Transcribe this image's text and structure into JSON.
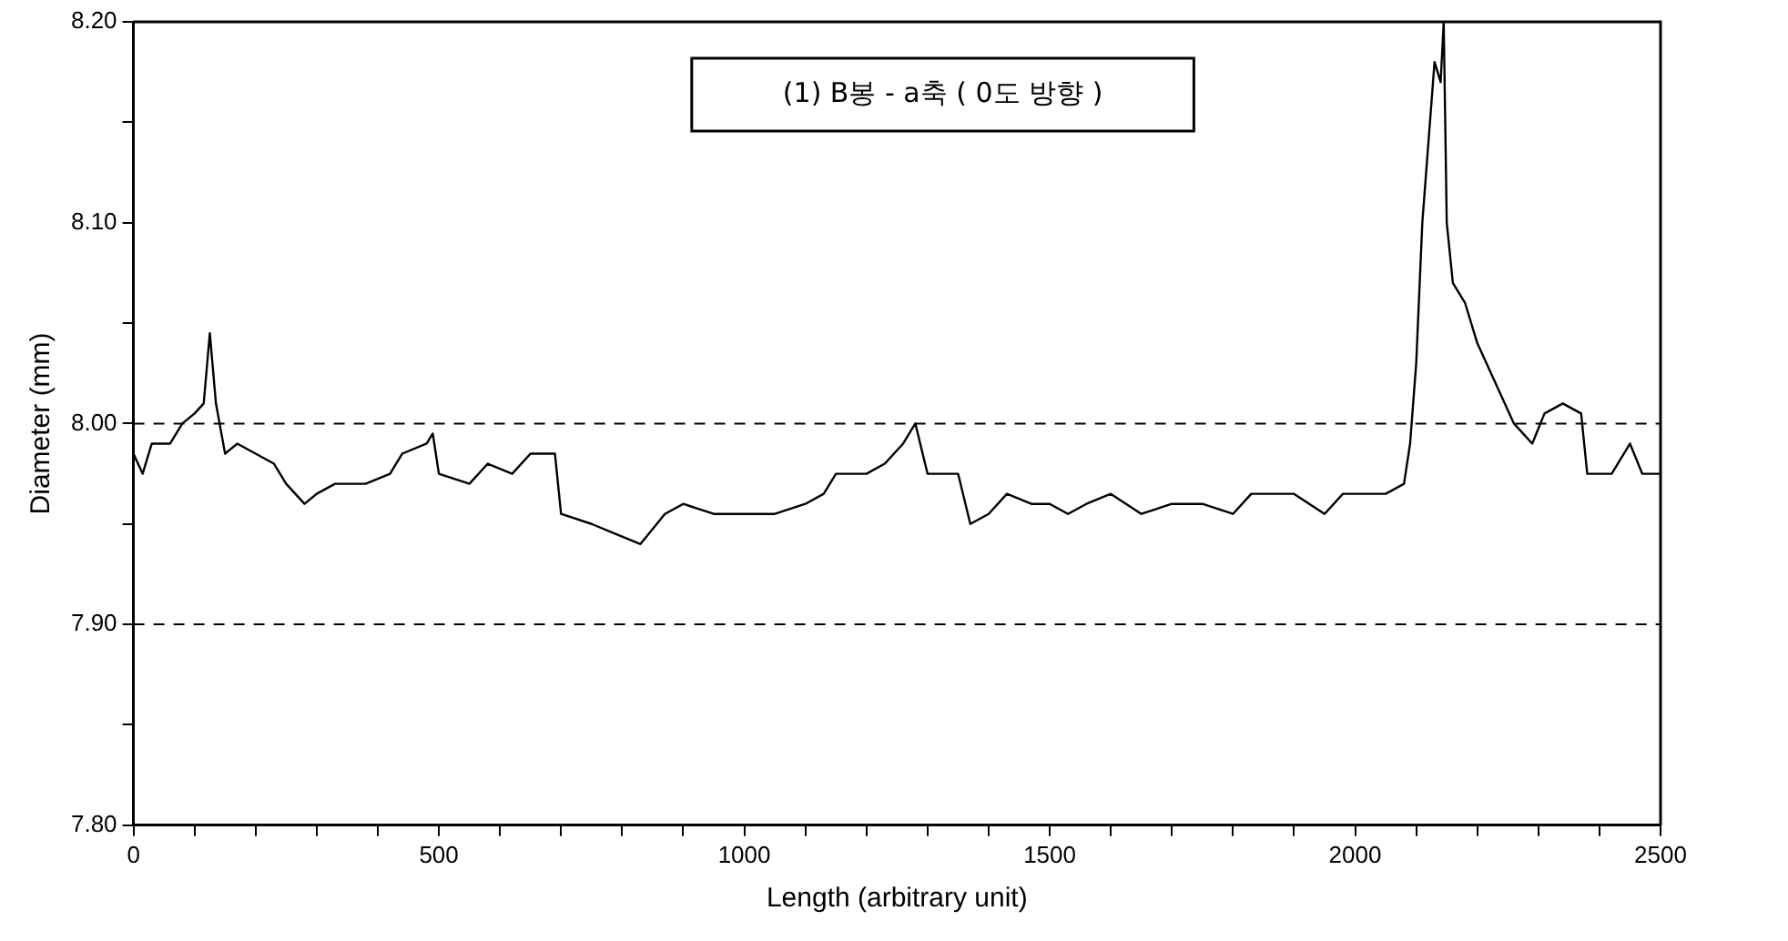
{
  "chart_data": {
    "type": "line",
    "xlabel": "Length (arbitrary unit)",
    "ylabel": "Diameter (mm)",
    "annotations": [
      "(1) B봉 - a축 ( 0도 방향 )"
    ],
    "xlim": [
      0,
      2500
    ],
    "ylim": [
      7.8,
      8.2
    ],
    "xticks": [
      0,
      {
        "value": 100,
        "label": null
      },
      {
        "value": 200,
        "label": null
      },
      {
        "value": 300,
        "label": null
      },
      {
        "value": 400,
        "label": null
      },
      500,
      {
        "value": 600,
        "label": null
      },
      {
        "value": 700,
        "label": null
      },
      {
        "value": 800,
        "label": null
      },
      {
        "value": 900,
        "label": null
      },
      1000,
      {
        "value": 1100,
        "label": null
      },
      {
        "value": 1200,
        "label": null
      },
      {
        "value": 1300,
        "label": null
      },
      {
        "value": 1400,
        "label": null
      },
      1500,
      {
        "value": 1600,
        "label": null
      },
      {
        "value": 1700,
        "label": null
      },
      {
        "value": 1800,
        "label": null
      },
      {
        "value": 1900,
        "label": null
      },
      2000,
      {
        "value": 2100,
        "label": null
      },
      {
        "value": 2200,
        "label": null
      },
      {
        "value": 2300,
        "label": null
      },
      {
        "value": 2400,
        "label": null
      },
      2500
    ],
    "yticks": [
      {
        "value": 7.8,
        "label": "7.80"
      },
      {
        "value": 7.85,
        "label": null
      },
      {
        "value": 7.9,
        "label": "7.90"
      },
      {
        "value": 7.95,
        "label": null
      },
      {
        "value": 8.0,
        "label": "8.00"
      },
      {
        "value": 8.05,
        "label": null
      },
      {
        "value": 8.1,
        "label": "8.10"
      },
      {
        "value": 8.15,
        "label": null
      },
      {
        "value": 8.2,
        "label": "8.20"
      }
    ],
    "grid": false,
    "legend": false,
    "marker": "none",
    "line_style": "solid",
    "ref_lines": [
      {
        "axis": "y",
        "value": 8.0,
        "line_style": "dashed",
        "color": "#000000"
      },
      {
        "axis": "y",
        "value": 7.9,
        "line_style": "dashed",
        "color": "#000000"
      }
    ],
    "x": [
      0,
      15,
      30,
      60,
      80,
      100,
      115,
      125,
      135,
      150,
      170,
      200,
      230,
      250,
      280,
      300,
      330,
      380,
      420,
      440,
      480,
      490,
      500,
      550,
      580,
      620,
      650,
      690,
      700,
      750,
      790,
      830,
      870,
      900,
      950,
      1000,
      1050,
      1100,
      1130,
      1150,
      1200,
      1230,
      1260,
      1280,
      1300,
      1350,
      1370,
      1400,
      1430,
      1470,
      1500,
      1530,
      1560,
      1600,
      1650,
      1700,
      1750,
      1800,
      1830,
      1900,
      1950,
      1980,
      2050,
      2080,
      2090,
      2100,
      2110,
      2120,
      2130,
      2140,
      2145,
      2150,
      2160,
      2180,
      2200,
      2230,
      2260,
      2290,
      2310,
      2340,
      2370,
      2380,
      2420,
      2450,
      2470,
      2500
    ],
    "series": [
      {
        "color": "#000000",
        "values": [
          7.985,
          7.975,
          7.99,
          7.99,
          8.0,
          8.005,
          8.01,
          8.045,
          8.01,
          7.985,
          7.99,
          7.985,
          7.98,
          7.97,
          7.96,
          7.965,
          7.97,
          7.97,
          7.975,
          7.985,
          7.99,
          7.995,
          7.975,
          7.97,
          7.98,
          7.975,
          7.985,
          7.985,
          7.955,
          7.95,
          7.945,
          7.94,
          7.955,
          7.96,
          7.955,
          7.955,
          7.955,
          7.96,
          7.965,
          7.975,
          7.975,
          7.98,
          7.99,
          8.0,
          7.975,
          7.975,
          7.95,
          7.955,
          7.965,
          7.96,
          7.96,
          7.955,
          7.96,
          7.965,
          7.955,
          7.96,
          7.96,
          7.955,
          7.965,
          7.965,
          7.955,
          7.965,
          7.965,
          7.97,
          7.99,
          8.03,
          8.1,
          8.14,
          8.18,
          8.17,
          8.2,
          8.1,
          8.07,
          8.06,
          8.04,
          8.02,
          8.0,
          7.99,
          8.005,
          8.01,
          8.005,
          7.975,
          7.975,
          7.99,
          7.975,
          7.975
        ]
      }
    ]
  }
}
